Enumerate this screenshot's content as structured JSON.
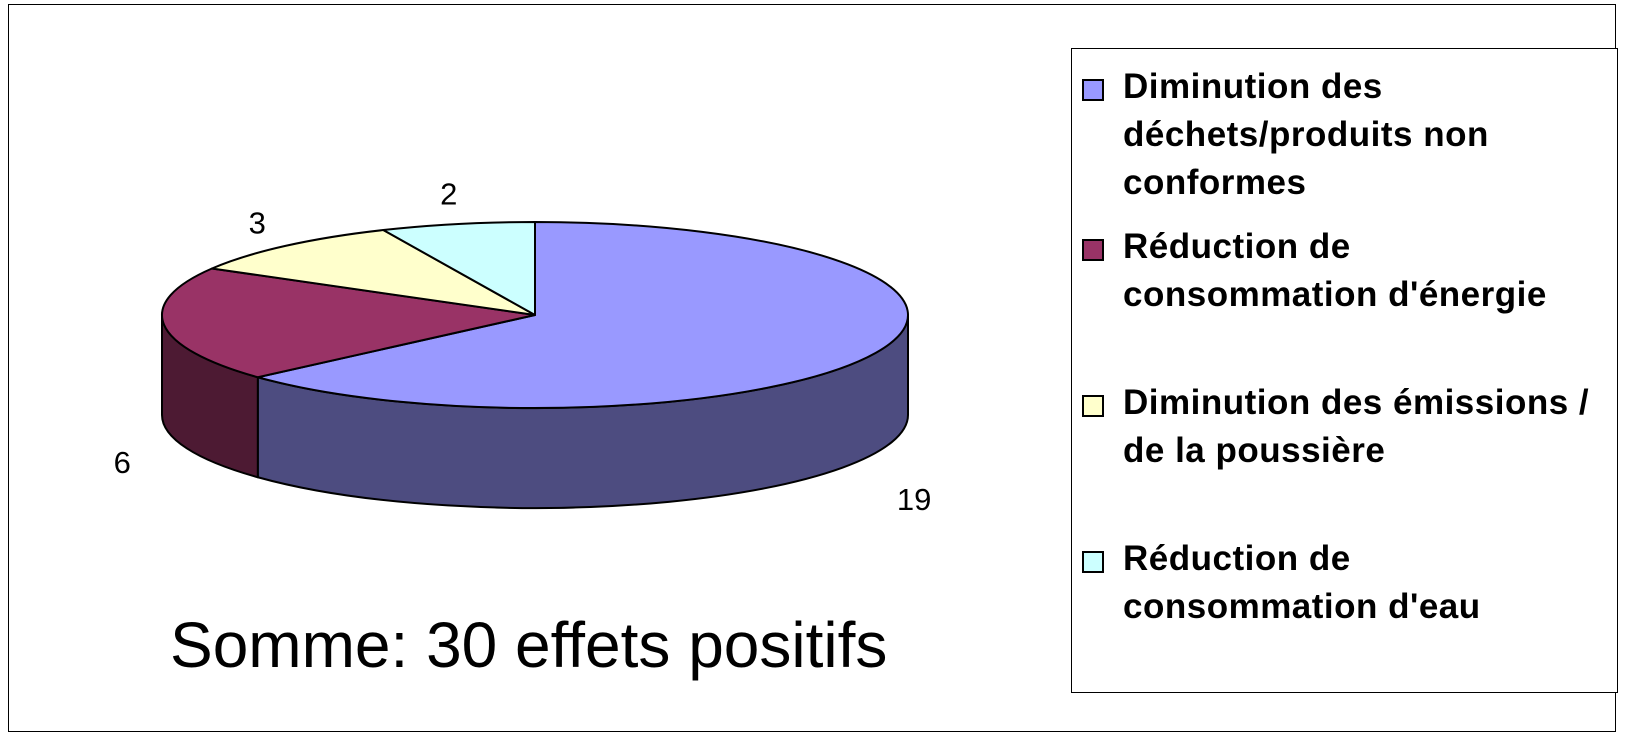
{
  "chart_data": {
    "type": "pie",
    "three_d": true,
    "categories": [
      "Diminution des déchets/produits non conformes",
      "Réduction de consommation d'énergie",
      "Diminution des émissions / de la poussière",
      "Réduction de consommation d'eau"
    ],
    "values": [
      19,
      6,
      3,
      2
    ],
    "data_labels": [
      "19",
      "6",
      "3",
      "2"
    ],
    "colors": [
      "#9999ff",
      "#993366",
      "#ffffcc",
      "#ccffff"
    ],
    "side_colors": [
      "#4d4c80",
      "#4d1a33",
      "#808066",
      "#668080"
    ],
    "legend_placement": "right",
    "annotation": "Somme: 30 effets positifs"
  }
}
